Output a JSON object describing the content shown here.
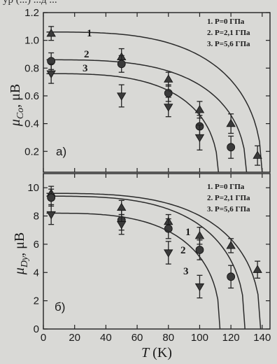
{
  "top_text": "ур (...) ...д ...",
  "chart_data": [
    {
      "type": "scatter",
      "panel_label": "a)",
      "ylabel": "μ_Co, μB",
      "ylabel_main": "μ",
      "ylabel_sub": "Co",
      "ylabel_unit": ", μB",
      "xlabel": "",
      "xlim": [
        0,
        145
      ],
      "ylim": [
        0.05,
        1.2
      ],
      "yticks": [
        0.2,
        0.4,
        0.6,
        0.8,
        1.0,
        1.2
      ],
      "ytick_labels": [
        "0.2",
        "0.4",
        "0.6",
        "0.8",
        "1.0",
        "1.2"
      ],
      "legend": [
        "1. P=0 ГПа",
        "2. P=2,1 ГПа",
        "3. P=5,6 ГПа"
      ],
      "legend_position": "top-right",
      "series": [
        {
          "curve_label": "1",
          "marker": "triangle-up",
          "x": [
            5,
            50,
            80,
            100,
            120,
            137
          ],
          "y": [
            1.05,
            0.88,
            0.72,
            0.5,
            0.4,
            0.17
          ],
          "err": [
            0.05,
            0.06,
            0.05,
            0.06,
            0.07,
            0.07
          ],
          "fit": {
            "M0": 1.06,
            "Tc": 140
          }
        },
        {
          "curve_label": "2",
          "marker": "circle",
          "x": [
            5,
            50,
            80,
            100,
            120
          ],
          "y": [
            0.85,
            0.83,
            0.62,
            0.38,
            0.23
          ],
          "err": [
            0.06,
            0.06,
            0.06,
            0.08,
            0.08
          ],
          "fit": {
            "M0": 0.86,
            "Tc": 130
          }
        },
        {
          "curve_label": "3",
          "marker": "triangle-down",
          "x": [
            5,
            50,
            80,
            100
          ],
          "y": [
            0.76,
            0.6,
            0.52,
            0.3
          ],
          "err": [
            0.07,
            0.08,
            0.07,
            0.09
          ],
          "fit": {
            "M0": 0.76,
            "Tc": 112
          }
        }
      ]
    },
    {
      "type": "scatter",
      "panel_label": "б)",
      "ylabel": "μ_Dy, μB",
      "ylabel_main": "μ",
      "ylabel_sub": "Dy",
      "ylabel_unit": ", μB",
      "xlabel": "T (K)",
      "xlabel_main": "T",
      "xlabel_unit": " (K)",
      "xlim": [
        0,
        145
      ],
      "ylim": [
        0,
        11
      ],
      "xticks": [
        0,
        20,
        40,
        60,
        80,
        100,
        120,
        140
      ],
      "xtick_labels": [
        "0",
        "20",
        "40",
        "60",
        "80",
        "100",
        "120",
        "140"
      ],
      "yticks": [
        0,
        2,
        4,
        6,
        8,
        10
      ],
      "ytick_labels": [
        "0",
        "2",
        "4",
        "6",
        "8",
        "10"
      ],
      "legend": [
        "1. P=0 ГПа",
        "2. P=2,1 ГПа",
        "3. P=5,6 ГПа"
      ],
      "legend_position": "top-right",
      "series": [
        {
          "curve_label": "1",
          "marker": "triangle-up",
          "x": [
            5,
            50,
            80,
            100,
            120,
            137
          ],
          "y": [
            9.6,
            8.6,
            7.6,
            6.6,
            5.9,
            4.2
          ],
          "err": [
            0.5,
            0.5,
            0.5,
            0.6,
            0.5,
            0.6
          ],
          "fit": {
            "M0": 9.6,
            "Tc": 139
          }
        },
        {
          "curve_label": "2",
          "marker": "circle",
          "x": [
            5,
            50,
            80,
            100,
            120
          ],
          "y": [
            9.3,
            7.7,
            7.1,
            5.6,
            3.7
          ],
          "err": [
            0.6,
            0.7,
            0.7,
            0.7,
            0.8
          ],
          "fit": {
            "M0": 9.4,
            "Tc": 129
          }
        },
        {
          "curve_label": "3",
          "marker": "triangle-down",
          "x": [
            5,
            50,
            80,
            100
          ],
          "y": [
            8.1,
            7.4,
            5.4,
            3.0
          ],
          "err": [
            0.7,
            0.7,
            0.8,
            0.8
          ],
          "fit": {
            "M0": 8.2,
            "Tc": 113
          }
        }
      ]
    }
  ]
}
